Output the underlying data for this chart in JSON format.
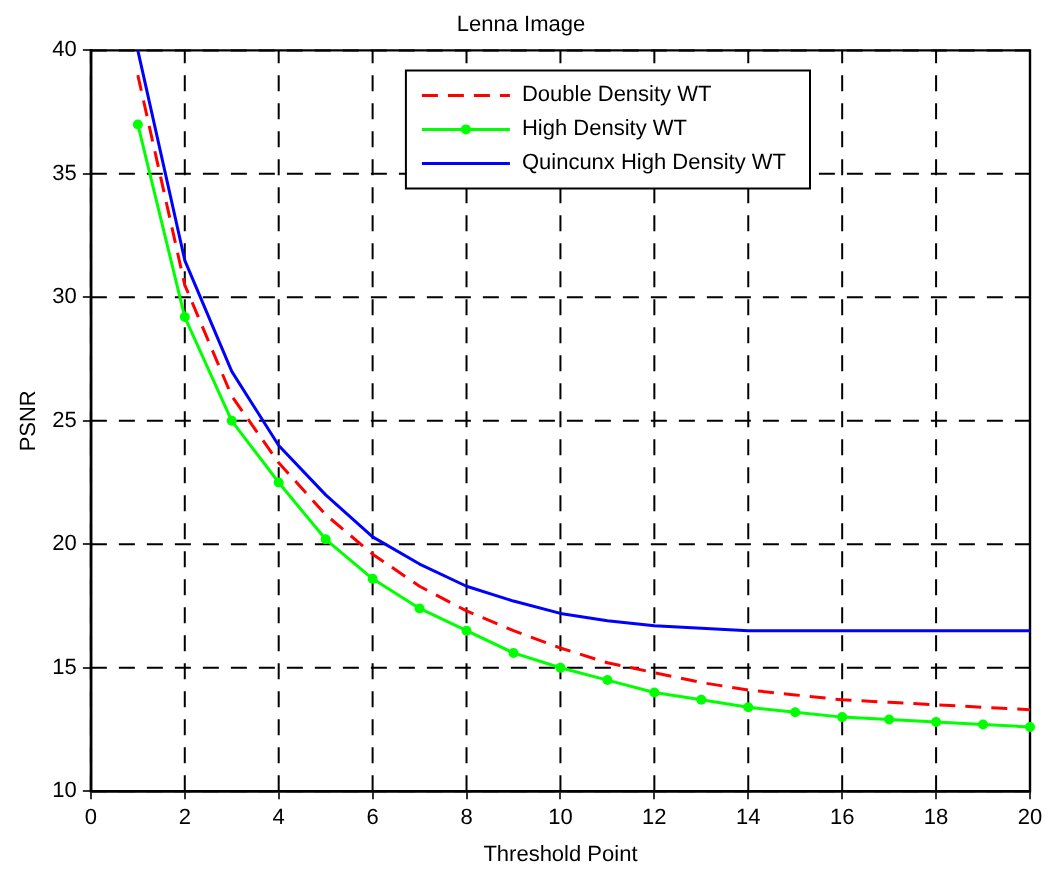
{
  "chart_data": {
    "type": "line",
    "title": "Lenna Image",
    "xlabel": "Threshold Point",
    "ylabel": "PSNR",
    "x": [
      1,
      2,
      3,
      4,
      5,
      6,
      7,
      8,
      9,
      10,
      11,
      12,
      13,
      14,
      15,
      16,
      17,
      18,
      19,
      20
    ],
    "series": [
      {
        "name": "Double Density WT",
        "color": "#ff0000",
        "line_style": "dashed",
        "marker": "none",
        "values": [
          39,
          30.5,
          26,
          23.3,
          21.2,
          19.6,
          18.3,
          17.3,
          16.5,
          15.8,
          15.2,
          14.8,
          14.4,
          14.1,
          13.9,
          13.7,
          13.6,
          13.5,
          13.4,
          13.3
        ]
      },
      {
        "name": "High Density WT",
        "color": "#00ff00",
        "line_style": "solid",
        "marker": "circle",
        "values": [
          37,
          29.2,
          25,
          22.5,
          20.2,
          18.6,
          17.4,
          16.5,
          15.6,
          15,
          14.5,
          14,
          13.7,
          13.4,
          13.2,
          13,
          12.9,
          12.8,
          12.7,
          12.6
        ]
      },
      {
        "name": "Quincunx High Density WT",
        "color": "#0000ff",
        "line_style": "solid",
        "marker": "none",
        "values": [
          40,
          31.5,
          27,
          24,
          22,
          20.3,
          19.2,
          18.3,
          17.7,
          17.2,
          16.9,
          16.7,
          16.6,
          16.5,
          16.5,
          16.5,
          16.5,
          16.5,
          16.5,
          16.5
        ]
      }
    ],
    "xlim": [
      0,
      20
    ],
    "xticks": [
      0,
      2,
      4,
      6,
      8,
      10,
      12,
      14,
      16,
      18,
      20
    ],
    "ylim": [
      10,
      40
    ],
    "yticks": [
      10,
      15,
      20,
      25,
      30,
      35,
      40
    ],
    "grid": true,
    "legend": "top right"
  }
}
